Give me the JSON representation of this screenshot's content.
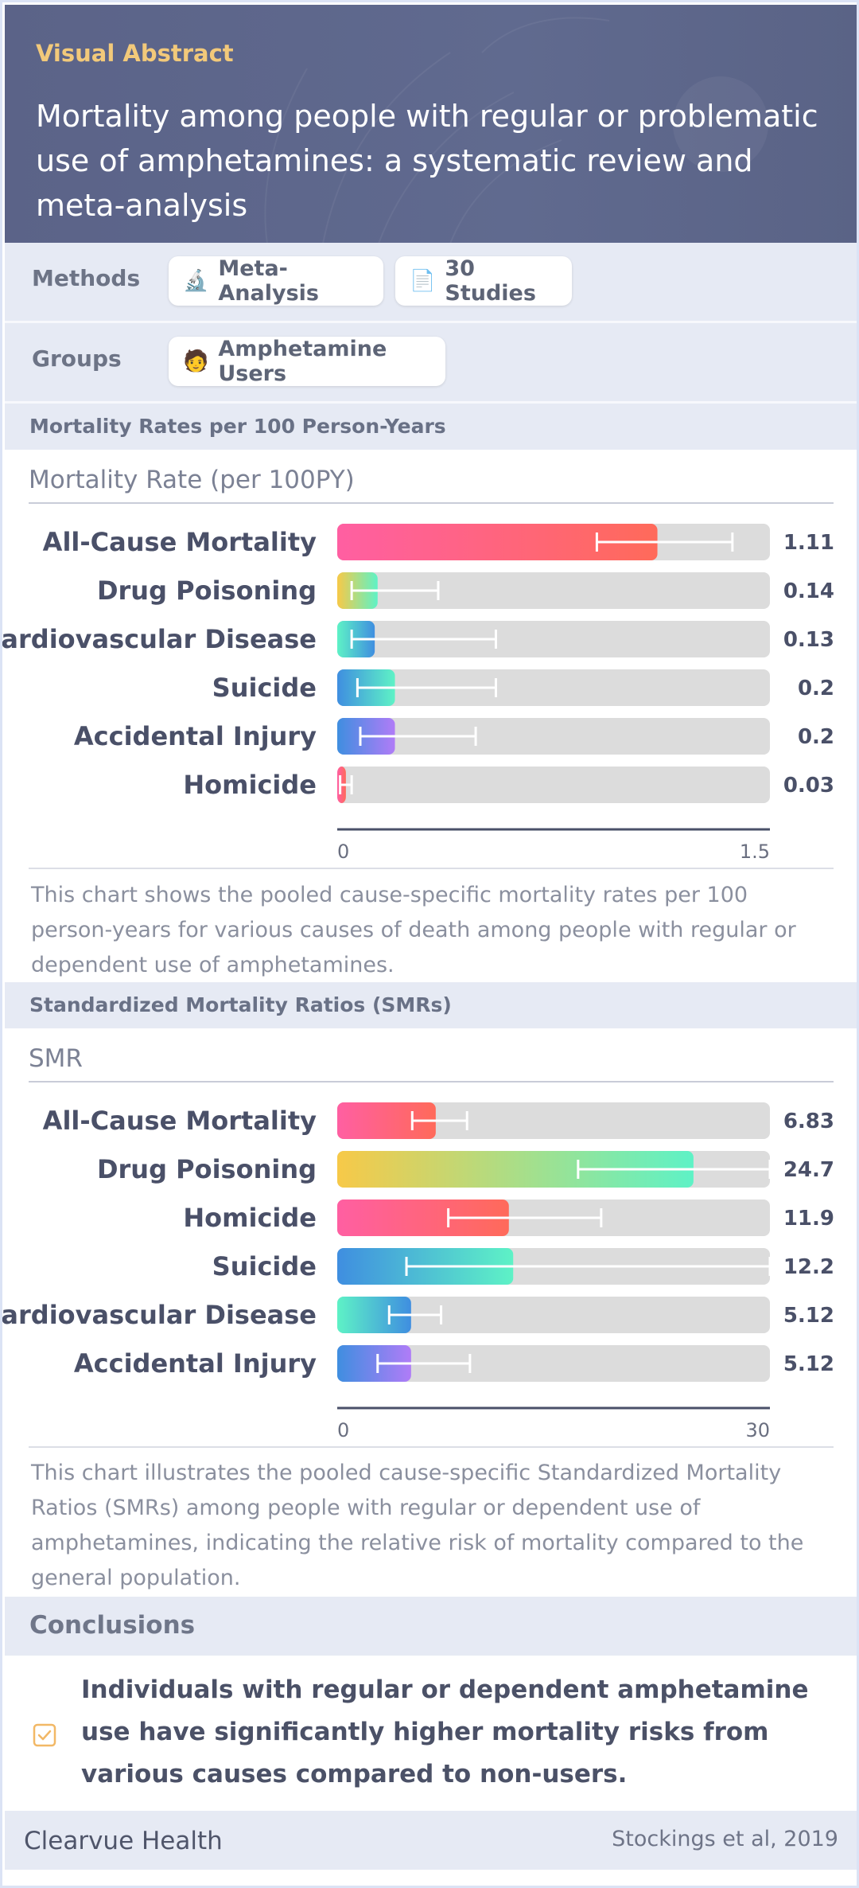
{
  "header": {
    "label": "Visual Abstract",
    "title": "Mortality among people with regular or problematic use of amphetamines: a systematic review and meta-analysis"
  },
  "methods": {
    "label": "Methods",
    "chips": [
      {
        "icon": "microscope-icon",
        "glyph": "🔬",
        "text": "Meta-Analysis"
      },
      {
        "icon": "document-icon",
        "glyph": "📄",
        "text": "30 Studies"
      }
    ]
  },
  "groups": {
    "label": "Groups",
    "chips": [
      {
        "icon": "person-icon",
        "glyph": "🧑",
        "text": "Amphetamine Users"
      }
    ]
  },
  "section1": {
    "heading": "Mortality Rates per 100 Person-Years",
    "caption": "This chart shows the pooled cause-specific mortality rates per 100 person-years for various causes of death among people with regular or dependent use of amphetamines."
  },
  "section2": {
    "heading": "Standardized Mortality Ratios (SMRs)",
    "caption": "This chart illustrates the pooled cause-specific Standardized Mortality Ratios (SMRs) among people with regular or dependent use of amphetamines, indicating the relative risk of mortality compared to the general population."
  },
  "chart_data": [
    {
      "type": "bar",
      "orientation": "horizontal",
      "title": "Mortality Rate (per 100PY)",
      "categories": [
        "All-Cause Mortality",
        "Drug Poisoning",
        "Cardiovascular Disease",
        "Suicide",
        "Accidental Injury",
        "Homicide"
      ],
      "values": [
        1.11,
        0.14,
        0.13,
        0.2,
        0.2,
        0.03
      ],
      "value_labels": [
        "1.11",
        "0.14",
        "0.13",
        "0.2",
        "0.2",
        "0.03"
      ],
      "ci_low": [
        0.9,
        0.05,
        0.05,
        0.07,
        0.08,
        0.01
      ],
      "ci_high": [
        1.37,
        0.35,
        0.55,
        0.55,
        0.48,
        0.05
      ],
      "xlim": [
        0,
        1.5
      ],
      "ticks": [
        "0",
        "1.5"
      ],
      "colors": [
        [
          "#ff5fa2",
          "#ff6a5a"
        ],
        [
          "#f7c948",
          "#5ef2c6"
        ],
        [
          "#5ef2c6",
          "#3f8ee0"
        ],
        [
          "#3f8ee0",
          "#5ef2c6"
        ],
        [
          "#3f8ee0",
          "#b07cf7"
        ],
        [
          "#ff5fa2",
          "#ff6a5a"
        ]
      ]
    },
    {
      "type": "bar",
      "orientation": "horizontal",
      "title": "SMR",
      "categories": [
        "All-Cause Mortality",
        "Drug Poisoning",
        "Homicide",
        "Suicide",
        "Cardiovascular Disease",
        "Accidental Injury"
      ],
      "values": [
        6.83,
        24.7,
        11.9,
        12.2,
        5.12,
        5.12
      ],
      "value_labels": [
        "6.83",
        "24.7",
        "11.9",
        "12.2",
        "5.12",
        "5.12"
      ],
      "ci_low": [
        5.2,
        16.7,
        7.7,
        4.8,
        3.6,
        2.8
      ],
      "ci_high": [
        9.0,
        30.0,
        18.3,
        30.0,
        7.2,
        9.2
      ],
      "xlim": [
        0,
        30
      ],
      "ticks": [
        "0",
        "30"
      ],
      "colors": [
        [
          "#ff5fa2",
          "#ff6a5a"
        ],
        [
          "#f7c948",
          "#5ef2c6"
        ],
        [
          "#ff5fa2",
          "#ff6a5a"
        ],
        [
          "#3f8ee0",
          "#5ef2c6"
        ],
        [
          "#5ef2c6",
          "#3f8ee0"
        ],
        [
          "#3f8ee0",
          "#b07cf7"
        ]
      ]
    }
  ],
  "conclusions": {
    "heading": "Conclusions",
    "text": "Individuals with regular or dependent amphetamine use have significantly higher mortality risks from various causes compared to non-users."
  },
  "footer": {
    "brand": "Clearvue Health",
    "citation": "Stockings et al, 2019"
  }
}
